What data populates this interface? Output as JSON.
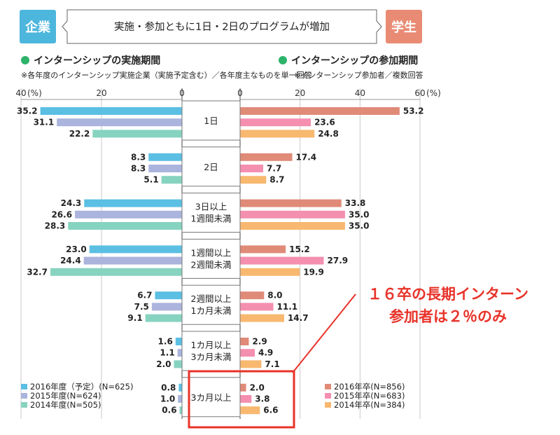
{
  "header": {
    "left_tag": "企業",
    "right_tag": "学生",
    "banner": "実施・参加ともに1日・2日のプログラムが増加"
  },
  "left_section": {
    "title": "インターンシップの実施期間",
    "note": "※各年度のインターンシップ実施企業（実施予定含む）／各年度主なものを単一回答"
  },
  "right_section": {
    "title": "インターンシップの参加期間",
    "note": "※インターンシップ参加者／複数回答"
  },
  "callout": {
    "line1": "１６卒の長期インターン",
    "line2": "参加者は２％のみ"
  },
  "colors": {
    "tag_left": "#4db6dc",
    "tag_right": "#e98b74",
    "section_dot": "#2db36a",
    "callout_red": "#e8332a",
    "left": [
      "#5bbfe3",
      "#aab4dc",
      "#86d3c0"
    ],
    "right": [
      "#e08a78",
      "#f48fb0",
      "#f8b870"
    ]
  },
  "chart_data": {
    "type": "bar",
    "orientation": "horizontal-butterfly",
    "categories": [
      "1日",
      "2日",
      "3日以上\n1週間未満",
      "1週間以上\n2週間未満",
      "2週間以上\n1カ月未満",
      "1カ月以上\n3カ月未満",
      "3カ月以上"
    ],
    "left": {
      "axis_ticks": [
        "40",
        "20",
        "0"
      ],
      "axis_unit": "(%)",
      "xlim": [
        0,
        40
      ],
      "series": [
        {
          "name": "2016年度（予定）(N=625)",
          "values": [
            35.2,
            8.3,
            24.3,
            23.0,
            6.7,
            1.6,
            0.8
          ]
        },
        {
          "name": "2015年度(N=624)",
          "values": [
            31.1,
            8.3,
            26.6,
            24.4,
            7.5,
            1.1,
            1.0
          ]
        },
        {
          "name": "2014年度(N=505)",
          "values": [
            22.2,
            5.1,
            28.3,
            32.7,
            9.1,
            2.0,
            0.6
          ]
        }
      ]
    },
    "right": {
      "axis_ticks": [
        "0",
        "20",
        "40",
        "60"
      ],
      "axis_unit": "(%)",
      "xlim": [
        0,
        60
      ],
      "series": [
        {
          "name": "2016年卒(N=856)",
          "values": [
            53.2,
            17.4,
            33.8,
            15.2,
            8.0,
            2.9,
            2.0
          ]
        },
        {
          "name": "2015年卒(N=683)",
          "values": [
            23.6,
            7.7,
            35.0,
            27.9,
            11.1,
            4.9,
            3.8
          ]
        },
        {
          "name": "2014年卒(N=384)",
          "values": [
            24.8,
            8.7,
            35.0,
            19.9,
            14.7,
            7.1,
            6.6
          ]
        }
      ]
    },
    "highlight_category": "3カ月以上"
  }
}
